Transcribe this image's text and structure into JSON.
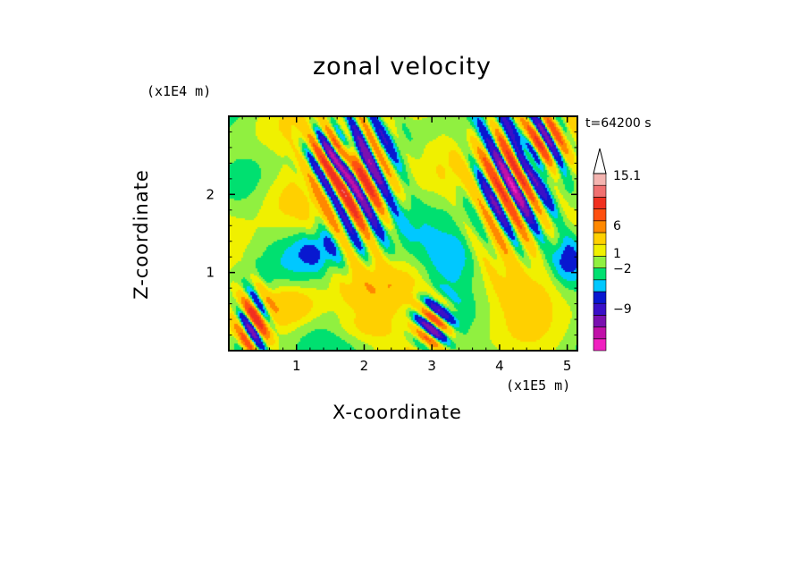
{
  "chart_data": {
    "type": "heatmap",
    "title": "zonal velocity",
    "xlabel": "X-coordinate",
    "ylabel": "Z-coordinate",
    "x_unit": "(x1E5 m)",
    "y_unit": "(x1E4 m)",
    "time_label": "t=64200 s",
    "xlim": [
      0,
      5.15
    ],
    "ylim": [
      0,
      3.0
    ],
    "x_ticks": [
      1,
      2,
      3,
      4,
      5
    ],
    "y_ticks": [
      1,
      2
    ],
    "colorbar": {
      "levels": [
        -15,
        -12,
        -9,
        -6,
        -4,
        -2,
        -1,
        0,
        1,
        2,
        4,
        6,
        9,
        12,
        15.1
      ],
      "colors": [
        "#f020c0",
        "#c010a8",
        "#7a10b0",
        "#3a10c8",
        "#0818d0",
        "#00c8ff",
        "#00e070",
        "#90f040",
        "#f0f000",
        "#ffd000",
        "#ff8800",
        "#ff5010",
        "#f03020",
        "#f07070",
        "#f4b4b0"
      ],
      "labels": [
        "15.1",
        "6",
        "1",
        "-2",
        "-9"
      ],
      "extend": "max"
    },
    "features": [
      {
        "x": 1.9,
        "z": 2.2,
        "sx": 0.45,
        "sz": 0.75,
        "kx": 2.4,
        "kz": 1.5,
        "amp": 12,
        "kind": "wave"
      },
      {
        "x": 1.55,
        "z": 2.55,
        "sx": 0.35,
        "sz": 0.4,
        "kx": 3.0,
        "kz": 2.0,
        "amp": 10,
        "kind": "wave"
      },
      {
        "x": 4.2,
        "z": 2.25,
        "sx": 0.5,
        "sz": 0.75,
        "kx": 2.4,
        "kz": 1.5,
        "amp": 12,
        "kind": "wave"
      },
      {
        "x": 4.55,
        "z": 2.6,
        "sx": 0.35,
        "sz": 0.4,
        "kx": 3.0,
        "kz": 2.0,
        "amp": 10,
        "kind": "wave"
      },
      {
        "x": 3.0,
        "z": 0.35,
        "sx": 0.25,
        "sz": 0.3,
        "kx": 2.0,
        "kz": 3.0,
        "amp": 9,
        "kind": "wave"
      },
      {
        "x": 0.35,
        "z": 0.35,
        "sx": 0.22,
        "sz": 0.4,
        "kx": 2.5,
        "kz": 2.0,
        "amp": 10,
        "kind": "wave"
      },
      {
        "x": 3.3,
        "z": 1.2,
        "sx": 0.4,
        "sz": 0.35,
        "amp": -3,
        "kind": "blob"
      },
      {
        "x": 1.3,
        "z": 1.3,
        "sx": 0.35,
        "sz": 0.25,
        "amp": -2.5,
        "kind": "blob"
      },
      {
        "x": 2.4,
        "z": 0.8,
        "sx": 0.6,
        "sz": 0.3,
        "amp": 2.2,
        "kind": "blob"
      },
      {
        "x": 4.4,
        "z": 0.8,
        "sx": 0.6,
        "sz": 0.35,
        "amp": 2.5,
        "kind": "blob"
      },
      {
        "x": 0.8,
        "z": 2.0,
        "sx": 0.5,
        "sz": 0.4,
        "amp": 2.0,
        "kind": "blob"
      },
      {
        "x": 5.0,
        "z": 1.2,
        "sx": 0.2,
        "sz": 0.3,
        "amp": -2.5,
        "kind": "blob"
      },
      {
        "x": 0.9,
        "z": 0.6,
        "sx": 0.4,
        "sz": 0.25,
        "amp": 3.0,
        "kind": "blob"
      },
      {
        "x": 2.0,
        "z": 0.3,
        "sx": 0.5,
        "sz": 0.2,
        "amp": 2.0,
        "kind": "blob"
      }
    ]
  }
}
